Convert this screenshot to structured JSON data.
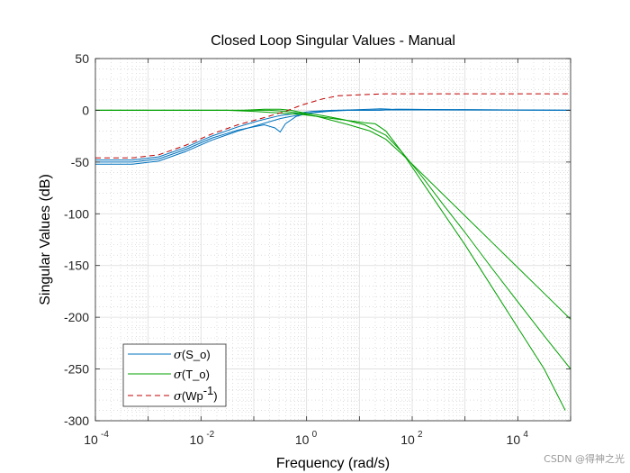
{
  "chart_data": {
    "type": "line",
    "title": "Closed Loop Singular Values - Manual",
    "xlabel": "Frequency (rad/s)",
    "ylabel": "Singular Values (dB)",
    "xscale": "log",
    "xlim_exp": [
      -4,
      5
    ],
    "ylim": [
      -300,
      50
    ],
    "x_tick_labels": [
      "10",
      "10",
      "10",
      "10",
      "10"
    ],
    "x_tick_exponents": [
      "-4",
      "-2",
      "0",
      "2",
      "4"
    ],
    "x_tick_exp_values": [
      -4,
      -2,
      0,
      2,
      4
    ],
    "y_ticks": [
      50,
      0,
      -50,
      -100,
      -150,
      -200,
      -250,
      -300
    ],
    "y_tick_labels": [
      "50",
      "0",
      "-50",
      "-100",
      "-150",
      "-200",
      "-250",
      "-300"
    ],
    "grid": true,
    "legend_position": "bottom-left",
    "legend": {
      "so_prefix": "σ",
      "so_label": "(S_o)",
      "to_prefix": "σ",
      "to_label": "(T_o)",
      "wp_prefix": "σ",
      "wp_label": "(Wp",
      "wp_sup": "-1",
      "wp_suffix": ")"
    },
    "colors": {
      "S_o": "#0072BD",
      "T_o": "#00A000",
      "Wp_inv": "#C00000"
    },
    "series": [
      {
        "name": "S_o (1)",
        "group": "S_o",
        "dash": "solid",
        "points": [
          [
            -4,
            -52
          ],
          [
            -3.3,
            -52
          ],
          [
            -2.8,
            -49
          ],
          [
            -2.3,
            -40
          ],
          [
            -1.8,
            -29
          ],
          [
            -1.3,
            -20
          ],
          [
            -0.9,
            -14
          ],
          [
            -0.5,
            -8
          ],
          [
            -0.3,
            -6
          ],
          [
            0,
            -3
          ],
          [
            0.3,
            -1
          ],
          [
            0.6,
            0
          ],
          [
            0.9,
            0.5
          ],
          [
            1.2,
            1
          ],
          [
            1.4,
            1.5
          ],
          [
            1.6,
            1
          ],
          [
            5,
            0
          ]
        ]
      },
      {
        "name": "S_o (2)",
        "group": "S_o",
        "dash": "solid",
        "points": [
          [
            -4,
            -50
          ],
          [
            -3.3,
            -50
          ],
          [
            -2.8,
            -47
          ],
          [
            -2.3,
            -38
          ],
          [
            -1.8,
            -27
          ],
          [
            -1.3,
            -19
          ],
          [
            -0.8,
            -14
          ],
          [
            -0.6,
            -17
          ],
          [
            -0.5,
            -21
          ],
          [
            -0.4,
            -13
          ],
          [
            -0.2,
            -6
          ],
          [
            0,
            -3
          ],
          [
            0.4,
            -1
          ],
          [
            0.8,
            0
          ],
          [
            1.2,
            0
          ],
          [
            1.6,
            0.5
          ],
          [
            5,
            0
          ]
        ]
      },
      {
        "name": "S_o (3)",
        "group": "S_o",
        "dash": "solid",
        "points": [
          [
            -4,
            -48
          ],
          [
            -3.3,
            -48
          ],
          [
            -2.8,
            -45
          ],
          [
            -2.3,
            -36
          ],
          [
            -1.8,
            -25
          ],
          [
            -1.3,
            -16
          ],
          [
            -0.9,
            -10
          ],
          [
            -0.5,
            -5
          ],
          [
            -0.2,
            -3
          ],
          [
            0.1,
            -1
          ],
          [
            0.5,
            0
          ],
          [
            1,
            0
          ],
          [
            1.4,
            0
          ],
          [
            1.7,
            1
          ],
          [
            5,
            0
          ]
        ]
      },
      {
        "name": "T_o (1)",
        "group": "T_o",
        "dash": "solid",
        "points": [
          [
            -4,
            0
          ],
          [
            -2,
            0
          ],
          [
            -1.5,
            0
          ],
          [
            -1,
            -1
          ],
          [
            -0.7,
            -2
          ],
          [
            -0.4,
            -3
          ],
          [
            -0.1,
            -4
          ],
          [
            0.2,
            -6
          ],
          [
            0.5,
            -8
          ],
          [
            0.8,
            -10
          ],
          [
            1.1,
            -12
          ],
          [
            1.3,
            -13
          ],
          [
            1.5,
            -20
          ],
          [
            1.8,
            -40
          ],
          [
            2.2,
            -70
          ],
          [
            2.6,
            -100
          ],
          [
            3,
            -130
          ],
          [
            3.5,
            -170
          ],
          [
            4,
            -210
          ],
          [
            4.5,
            -250
          ],
          [
            4.9,
            -290
          ]
        ]
      },
      {
        "name": "T_o (2)",
        "group": "T_o",
        "dash": "solid",
        "points": [
          [
            -4,
            0
          ],
          [
            -2,
            0
          ],
          [
            -1.4,
            0
          ],
          [
            -1,
            0
          ],
          [
            -0.7,
            0
          ],
          [
            -0.4,
            -1
          ],
          [
            -0.1,
            -3
          ],
          [
            0.2,
            -6
          ],
          [
            0.5,
            -10
          ],
          [
            0.8,
            -14
          ],
          [
            1.2,
            -20
          ],
          [
            1.5,
            -28
          ],
          [
            1.8,
            -42
          ],
          [
            2.2,
            -62
          ],
          [
            2.6,
            -82
          ],
          [
            3,
            -102
          ],
          [
            3.5,
            -127
          ],
          [
            4,
            -152
          ],
          [
            4.5,
            -177
          ],
          [
            5,
            -202
          ]
        ]
      },
      {
        "name": "T_o (3)",
        "group": "T_o",
        "dash": "solid",
        "points": [
          [
            -4,
            0
          ],
          [
            -2,
            0
          ],
          [
            -1.2,
            0
          ],
          [
            -0.8,
            1
          ],
          [
            -0.5,
            1
          ],
          [
            -0.3,
            0
          ],
          [
            0,
            -3
          ],
          [
            0.3,
            -5
          ],
          [
            0.7,
            -9
          ],
          [
            1.1,
            -14
          ],
          [
            1.5,
            -24
          ],
          [
            1.8,
            -40
          ],
          [
            2.2,
            -65
          ],
          [
            2.6,
            -92
          ],
          [
            3,
            -118
          ],
          [
            3.5,
            -152
          ],
          [
            4,
            -185
          ],
          [
            4.5,
            -218
          ],
          [
            5,
            -250
          ]
        ]
      },
      {
        "name": "Wp^-1",
        "group": "Wp_inv",
        "dash": "dashed",
        "points": [
          [
            -4,
            -46
          ],
          [
            -3.3,
            -46
          ],
          [
            -2.8,
            -43
          ],
          [
            -2.3,
            -34
          ],
          [
            -1.8,
            -23
          ],
          [
            -1.3,
            -14
          ],
          [
            -0.8,
            -7
          ],
          [
            -0.4,
            -1
          ],
          [
            -0.1,
            5
          ],
          [
            0.3,
            11
          ],
          [
            0.6,
            14
          ],
          [
            1,
            15
          ],
          [
            1.5,
            16
          ],
          [
            2,
            16
          ],
          [
            5,
            16
          ]
        ]
      }
    ]
  },
  "watermark": "CSDN @得神之光"
}
